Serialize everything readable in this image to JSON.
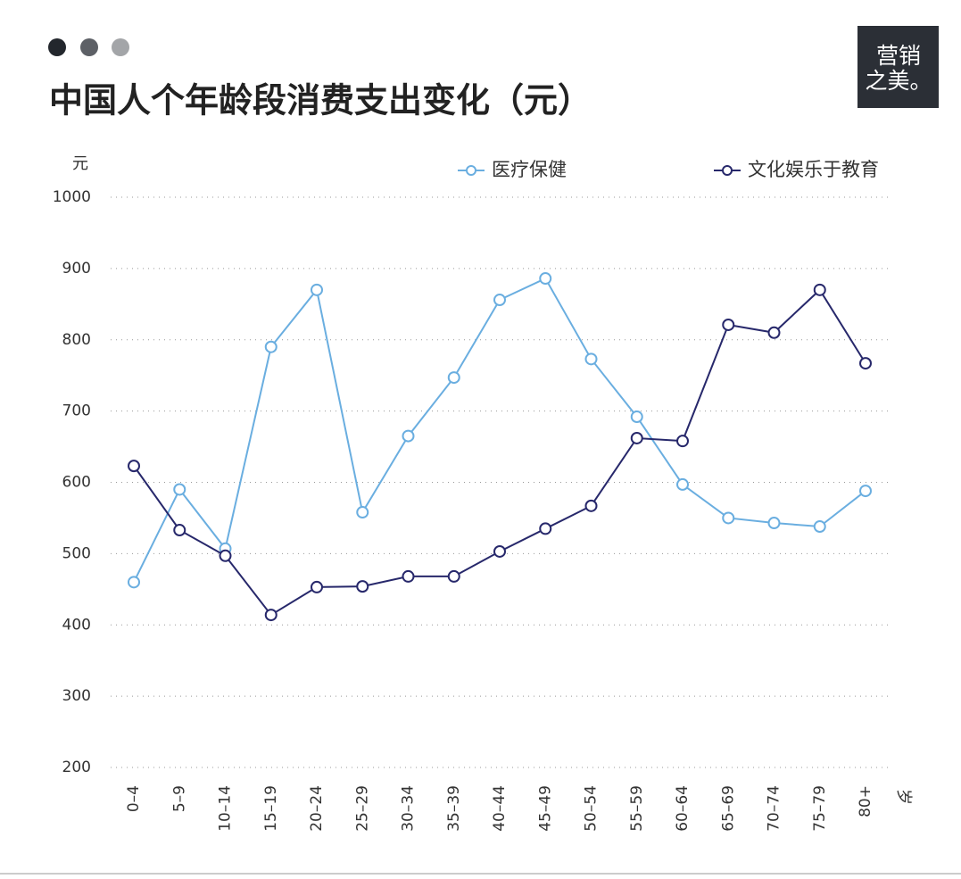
{
  "logo": [
    "营销",
    "之美。"
  ],
  "chart_data": {
    "type": "line",
    "title": "中国人个年龄段消费支出变化（元）",
    "y_label": "元",
    "x_label": "岁",
    "categories": [
      "0–4",
      "5–9",
      "10–14",
      "15–19",
      "20–24",
      "25–29",
      "30–34",
      "35–39",
      "40–44",
      "45–49",
      "50–54",
      "55–59",
      "60–64",
      "65–69",
      "70–74",
      "75–79",
      "80+"
    ],
    "series": [
      {
        "name": "医疗保健",
        "color": "#6aaee0",
        "values": [
          460,
          590,
          507,
          790,
          870,
          558,
          665,
          747,
          856,
          886,
          773,
          692,
          597,
          550,
          543,
          538,
          588
        ]
      },
      {
        "name": "文化娱乐于教育",
        "color": "#27286b",
        "values": [
          623,
          533,
          497,
          414,
          453,
          454,
          468,
          468,
          503,
          535,
          567,
          662,
          658,
          821,
          810,
          870,
          767
        ]
      }
    ],
    "ylim": [
      200,
      1000
    ],
    "yticks": [
      200,
      300,
      400,
      500,
      600,
      700,
      800,
      900,
      1000
    ],
    "grid": true
  }
}
